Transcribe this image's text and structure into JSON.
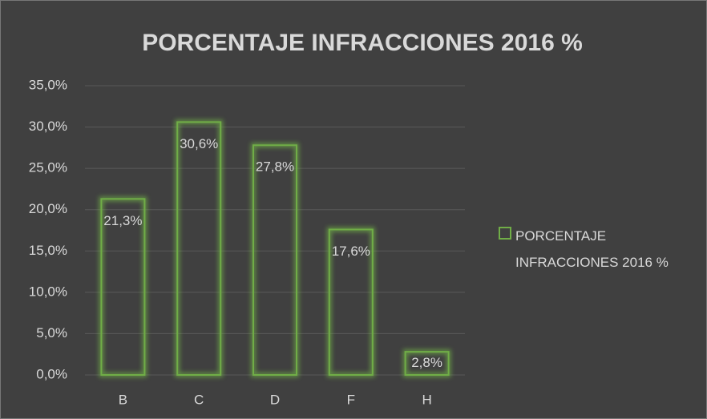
{
  "chart_data": {
    "type": "bar",
    "title": "PORCENTAJE INFRACCIONES  2016 %",
    "categories": [
      "B",
      "C",
      "D",
      "F",
      "H"
    ],
    "series": [
      {
        "name": "PORCENTAJE INFRACCIONES  2016 %",
        "color": "#70ad47",
        "values": [
          21.3,
          30.6,
          27.8,
          17.6,
          2.8
        ],
        "value_labels": [
          "21,3%",
          "30,6%",
          "27,8%",
          "17,6%",
          "2,8%"
        ]
      }
    ],
    "ylim": [
      0,
      35
    ],
    "yticks": [
      {
        "value": 0,
        "label": "0,0%"
      },
      {
        "value": 5,
        "label": "5,0%"
      },
      {
        "value": 10,
        "label": "10,0%"
      },
      {
        "value": 15,
        "label": "15,0%"
      },
      {
        "value": 20,
        "label": "20,0%"
      },
      {
        "value": 25,
        "label": "25,0%"
      },
      {
        "value": 30,
        "label": "30,0%"
      },
      {
        "value": 35,
        "label": "35,0%"
      }
    ],
    "grid": true,
    "legend": "right"
  }
}
